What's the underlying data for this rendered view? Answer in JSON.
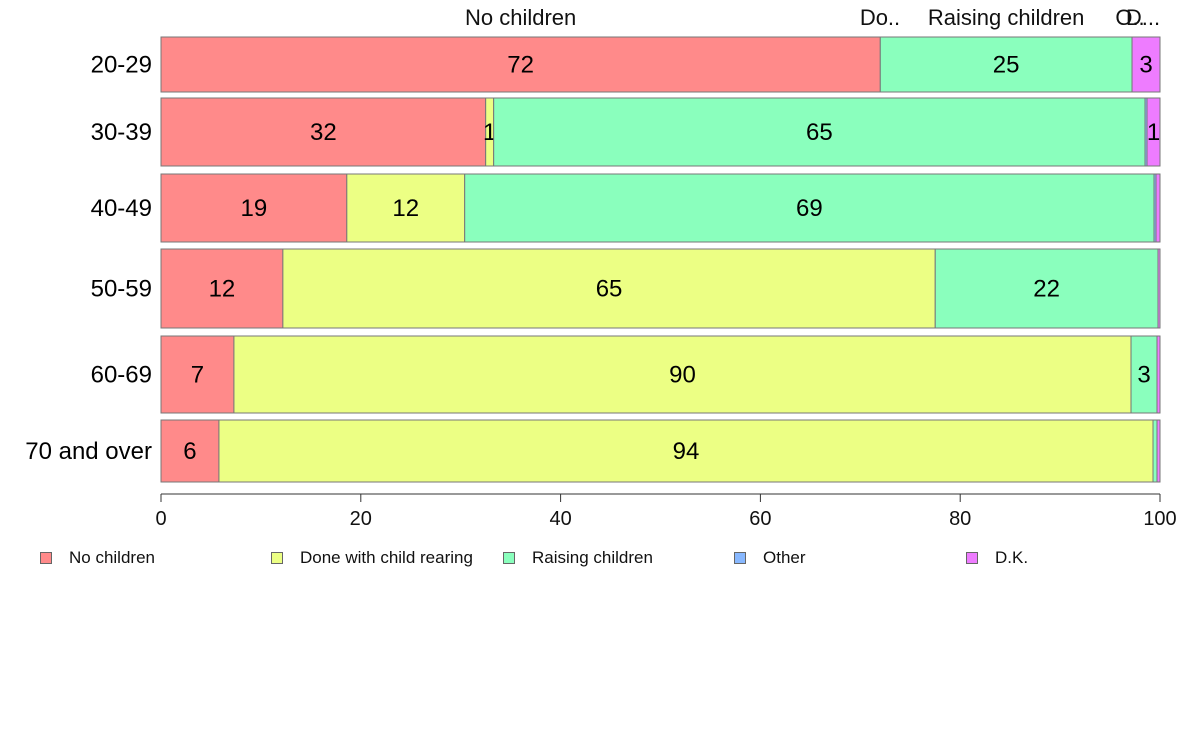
{
  "chart_data": {
    "type": "bar",
    "orientation": "horizontal",
    "stacked": true,
    "categories": [
      "20-29",
      "30-39",
      "40-49",
      "50-59",
      "60-69",
      "70 and over"
    ],
    "series": [
      {
        "name": "No children",
        "color": "#ff8a8a",
        "values": [
          72,
          32.5,
          18.6,
          12.2,
          7.3,
          5.8
        ]
      },
      {
        "name": "Done with child rearing",
        "color": "#ecff84",
        "values": [
          0,
          0.8,
          11.8,
          65.3,
          89.8,
          93.5
        ]
      },
      {
        "name": "Raising children",
        "color": "#8affbd",
        "values": [
          25.2,
          65.2,
          69.0,
          22.3,
          2.6,
          0.4
        ]
      },
      {
        "name": "Other",
        "color": "#88b8ff",
        "values": [
          0,
          0.2,
          0.2,
          0,
          0,
          0
        ]
      },
      {
        "name": "D.K.",
        "color": "#ee7cff",
        "values": [
          2.8,
          1.3,
          0.4,
          0.2,
          0.3,
          0.3
        ]
      }
    ],
    "data_labels": [
      [
        "72",
        "",
        "25",
        "",
        "3"
      ],
      [
        "32",
        "1",
        "65",
        "",
        "1"
      ],
      [
        "19",
        "12",
        "69",
        "",
        ""
      ],
      [
        "12",
        "65",
        "22",
        "",
        ""
      ],
      [
        "7",
        "90",
        "3",
        "",
        ""
      ],
      [
        "6",
        "94",
        "",
        "",
        ""
      ]
    ],
    "top_labels": [
      "No children",
      "Do..",
      "Raising children",
      "O..",
      "D..."
    ],
    "xlim": [
      0,
      100
    ],
    "xticks": [
      "0",
      "20",
      "40",
      "60",
      "80",
      "100"
    ],
    "legend_position": "bottom",
    "grid": false
  }
}
